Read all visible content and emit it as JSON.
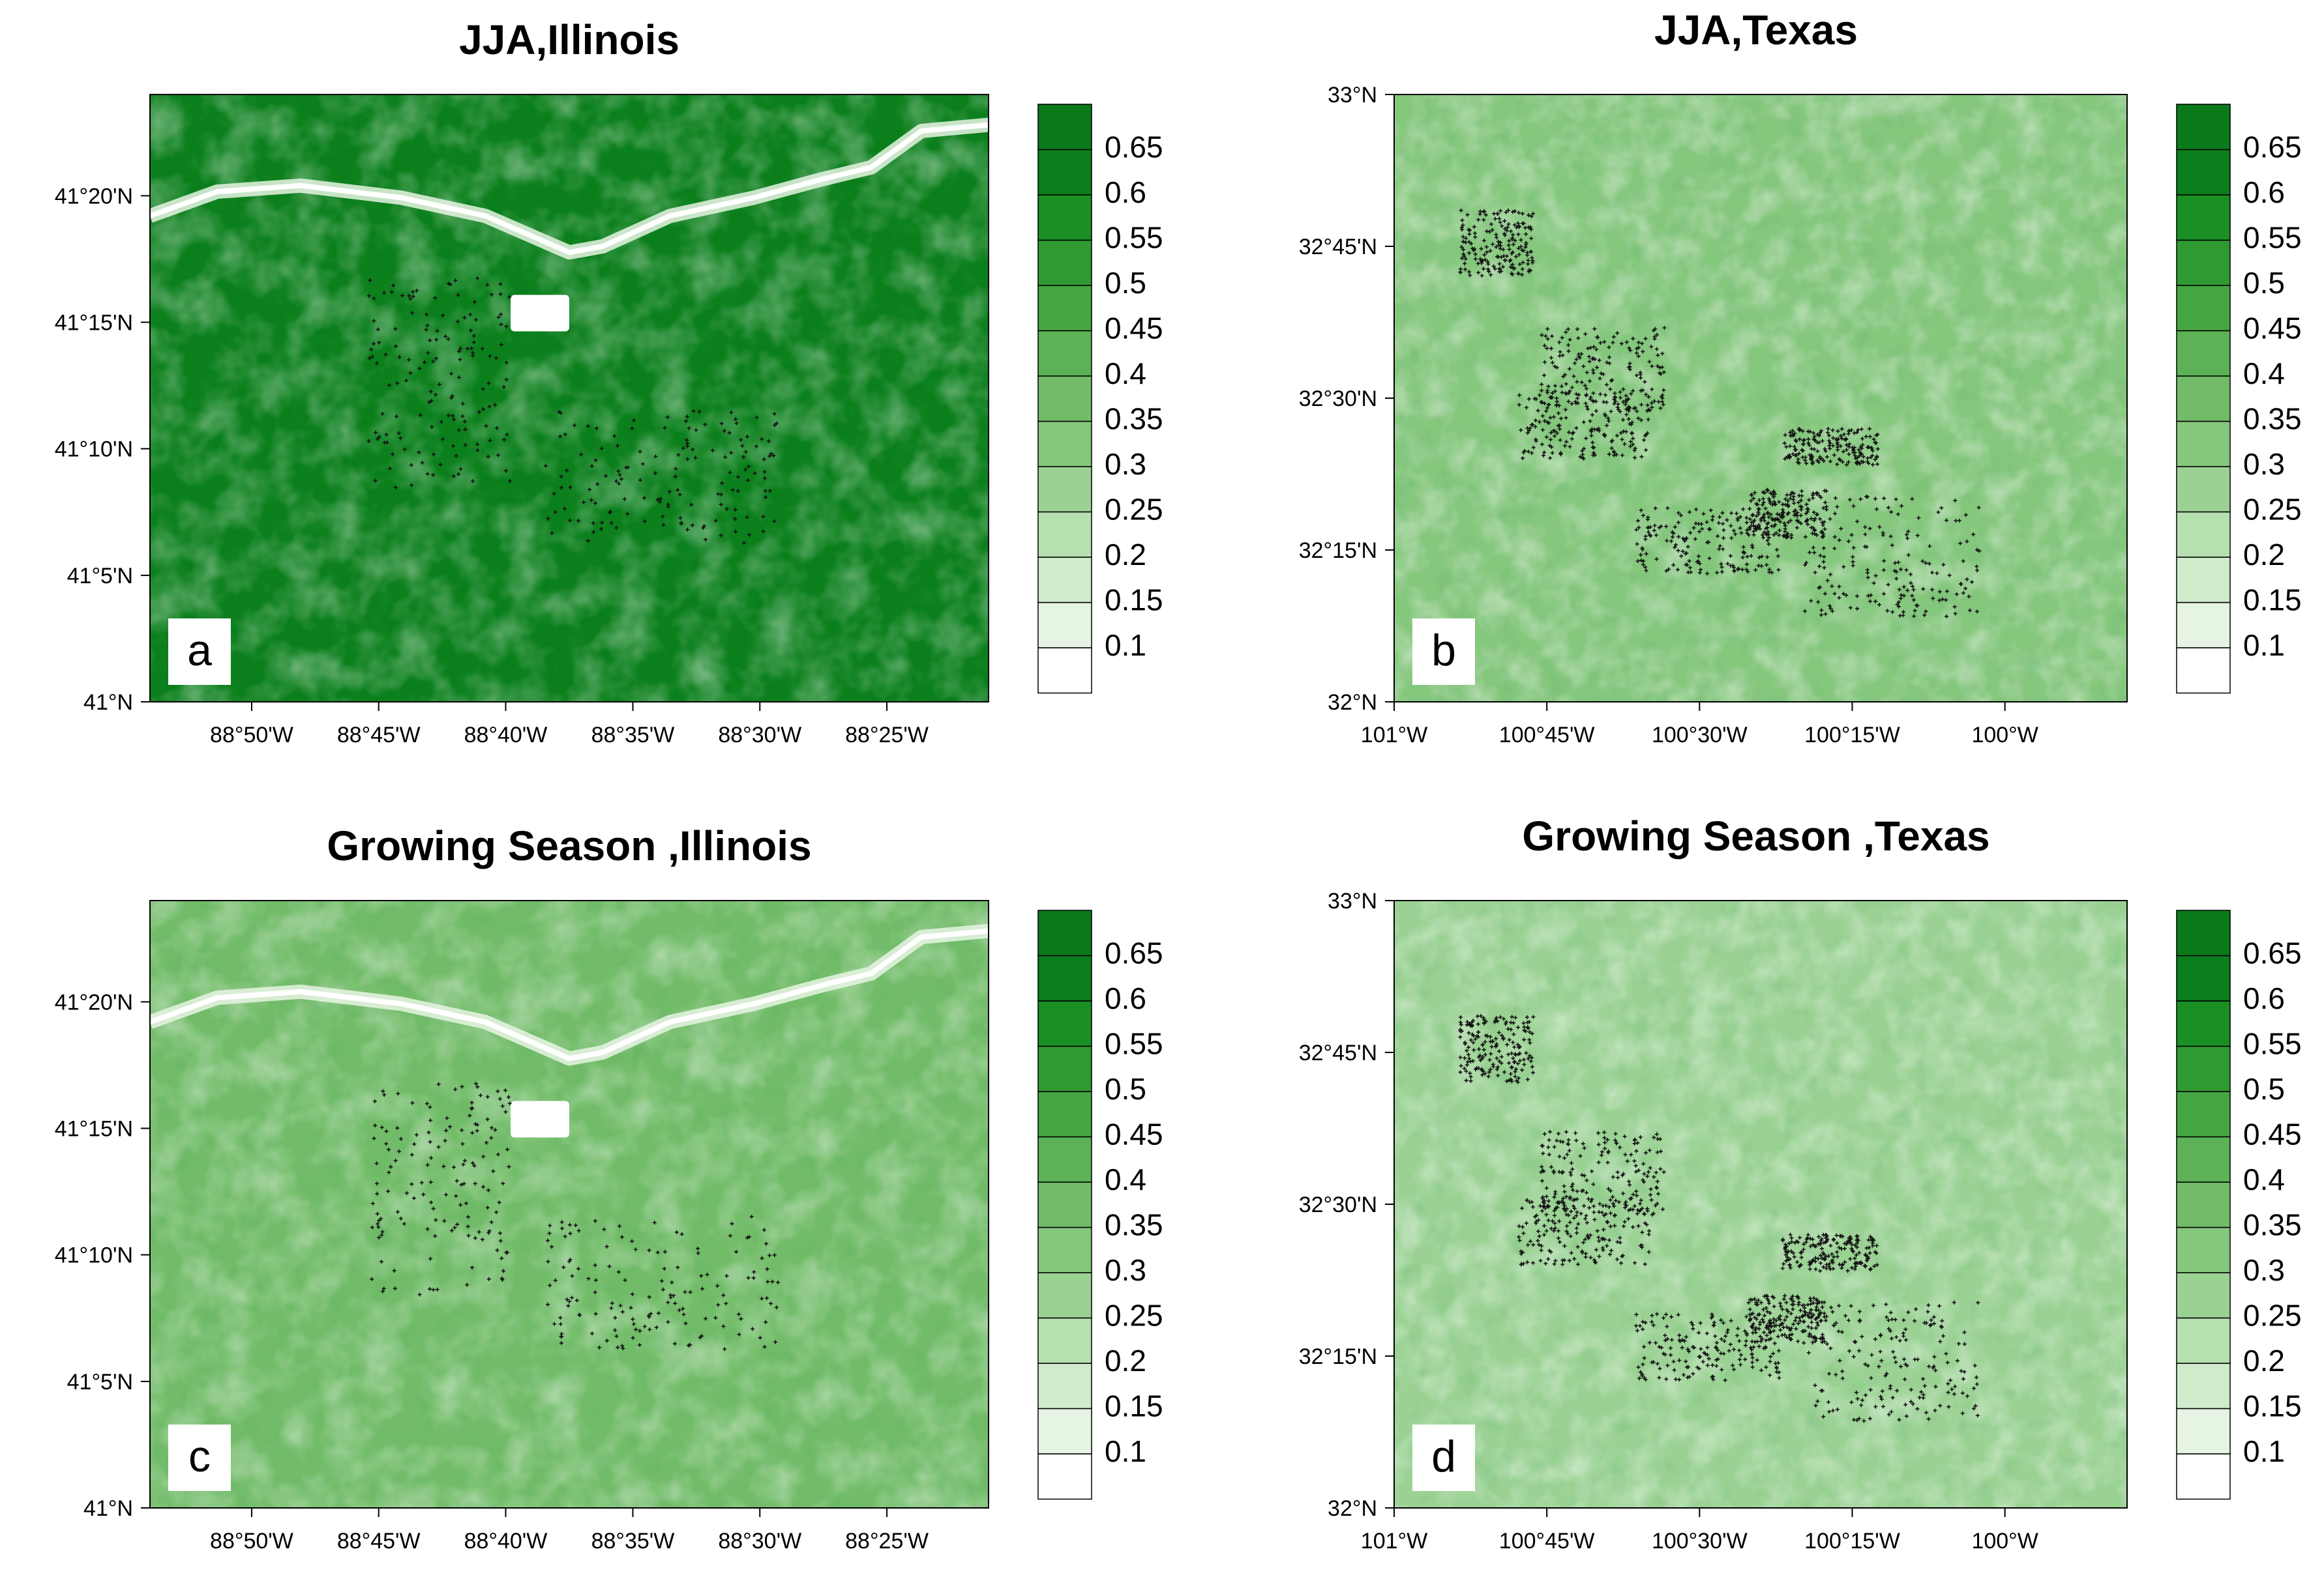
{
  "colorbar": {
    "levels": [
      "0.1",
      "0.15",
      "0.2",
      "0.25",
      "0.3",
      "0.35",
      "0.4",
      "0.45",
      "0.5",
      "0.55",
      "0.6",
      "0.65"
    ],
    "colors": [
      "#ffffff",
      "#e6f4e4",
      "#d0ebcc",
      "#b7e0b1",
      "#9bd294",
      "#86c77e",
      "#72bc69",
      "#5cb255",
      "#45a642",
      "#2f9a32",
      "#1a8f24",
      "#0b7f1c",
      "#0a7a1a"
    ]
  },
  "chart_data": [
    {
      "type": "map",
      "id": "a",
      "title": "JJA,Illinois",
      "panel_label": "a",
      "region": "Illinois",
      "season": "JJA",
      "xlim": [
        -88.9,
        -88.35
      ],
      "ylim": [
        41.0,
        41.4
      ],
      "xticks": [
        {
          "value": -88.8333,
          "label": "88°50'W"
        },
        {
          "value": -88.75,
          "label": "88°45'W"
        },
        {
          "value": -88.6667,
          "label": "88°40'W"
        },
        {
          "value": -88.5833,
          "label": "88°35'W"
        },
        {
          "value": -88.5,
          "label": "88°30'W"
        },
        {
          "value": -88.4167,
          "label": "88°25'W"
        }
      ],
      "yticks": [
        {
          "value": 41.0,
          "label": "41°N"
        },
        {
          "value": 41.0833,
          "label": "41°5'N"
        },
        {
          "value": 41.1667,
          "label": "41°10'N"
        },
        {
          "value": 41.25,
          "label": "41°15'N"
        },
        {
          "value": 41.3333,
          "label": "41°20'N"
        }
      ],
      "background_value": 0.6
    },
    {
      "type": "map",
      "id": "b",
      "title": "JJA,Texas",
      "panel_label": "b",
      "region": "Texas",
      "season": "JJA",
      "xlim": [
        -101.0,
        -99.8
      ],
      "ylim": [
        32.0,
        33.0
      ],
      "xticks": [
        {
          "value": -101.0,
          "label": "101°W"
        },
        {
          "value": -100.75,
          "label": "100°45'W"
        },
        {
          "value": -100.5,
          "label": "100°30'W"
        },
        {
          "value": -100.25,
          "label": "100°15'W"
        },
        {
          "value": -100.0,
          "label": "100°W"
        }
      ],
      "yticks": [
        {
          "value": 32.0,
          "label": "32°N"
        },
        {
          "value": 32.25,
          "label": "32°15'N"
        },
        {
          "value": 32.5,
          "label": "32°30'N"
        },
        {
          "value": 32.75,
          "label": "32°45'N"
        },
        {
          "value": 33.0,
          "label": "33°N"
        }
      ],
      "background_value": 0.3
    },
    {
      "type": "map",
      "id": "c",
      "title": "Growing Season ,Illinois",
      "panel_label": "c",
      "region": "Illinois",
      "season": "Growing Season",
      "xlim": [
        -88.9,
        -88.35
      ],
      "ylim": [
        41.0,
        41.4
      ],
      "xticks": [
        {
          "value": -88.8333,
          "label": "88°50'W"
        },
        {
          "value": -88.75,
          "label": "88°45'W"
        },
        {
          "value": -88.6667,
          "label": "88°40'W"
        },
        {
          "value": -88.5833,
          "label": "88°35'W"
        },
        {
          "value": -88.5,
          "label": "88°30'W"
        },
        {
          "value": -88.4167,
          "label": "88°25'W"
        }
      ],
      "yticks": [
        {
          "value": 41.0,
          "label": "41°N"
        },
        {
          "value": 41.0833,
          "label": "41°5'N"
        },
        {
          "value": 41.1667,
          "label": "41°10'N"
        },
        {
          "value": 41.25,
          "label": "41°15'N"
        },
        {
          "value": 41.3333,
          "label": "41°20'N"
        }
      ],
      "background_value": 0.35
    },
    {
      "type": "map",
      "id": "d",
      "title": "Growing Season ,Texas",
      "panel_label": "d",
      "region": "Texas",
      "season": "Growing Season",
      "xlim": [
        -101.0,
        -99.8
      ],
      "ylim": [
        32.0,
        33.0
      ],
      "xticks": [
        {
          "value": -101.0,
          "label": "101°W"
        },
        {
          "value": -100.75,
          "label": "100°45'W"
        },
        {
          "value": -100.5,
          "label": "100°30'W"
        },
        {
          "value": -100.25,
          "label": "100°15'W"
        },
        {
          "value": -100.0,
          "label": "100°W"
        }
      ],
      "yticks": [
        {
          "value": 32.0,
          "label": "32°N"
        },
        {
          "value": 32.25,
          "label": "32°15'N"
        },
        {
          "value": 32.5,
          "label": "32°30'N"
        },
        {
          "value": 32.75,
          "label": "32°45'N"
        },
        {
          "value": 33.0,
          "label": "33°N"
        }
      ],
      "background_value": 0.25
    }
  ]
}
